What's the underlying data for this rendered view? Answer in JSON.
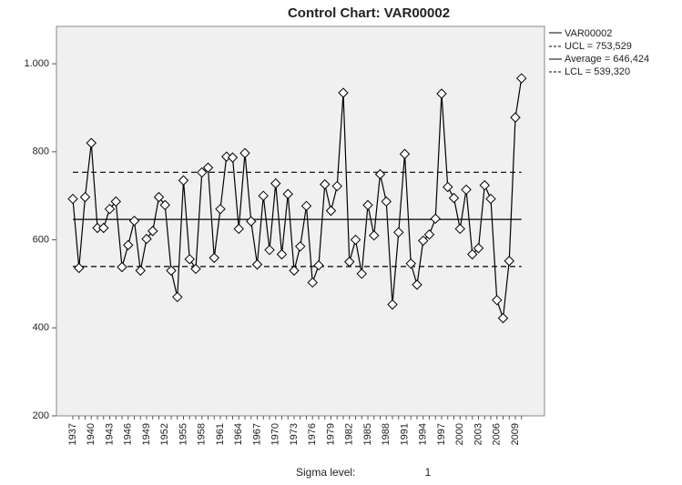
{
  "chart_data": {
    "type": "line",
    "title": "Control Chart: VAR00002",
    "categories": [
      "1937",
      null,
      null,
      "1940",
      null,
      null,
      "1943",
      null,
      null,
      "1946",
      null,
      null,
      "1949",
      null,
      null,
      "1952",
      null,
      null,
      "1955",
      null,
      null,
      "1958",
      null,
      null,
      "1961",
      null,
      null,
      "1964",
      null,
      null,
      "1967",
      null,
      null,
      "1970",
      null,
      null,
      "1973",
      null,
      null,
      "1976",
      null,
      null,
      "1979",
      null,
      null,
      "1982",
      null,
      null,
      "1985",
      null,
      null,
      "1988",
      null,
      null,
      "1991",
      null,
      null,
      "1994",
      null,
      null,
      "1997",
      null,
      null,
      "2000",
      null,
      null,
      "2003",
      null,
      null,
      "2006",
      null,
      null,
      "2009",
      null
    ],
    "series": [
      {
        "name": "VAR00002",
        "color": "#000000",
        "values": [
          693,
          536,
          697,
          820,
          627,
          627,
          670,
          687,
          538,
          588,
          643,
          530,
          602,
          620,
          697,
          679,
          530,
          470,
          735,
          556,
          534,
          753,
          764,
          559,
          670,
          789,
          787,
          625,
          797,
          642,
          544,
          700,
          577,
          728,
          567,
          704,
          530,
          585,
          677,
          503,
          542,
          726,
          666,
          722,
          934,
          550,
          600,
          523,
          679,
          610,
          749,
          687,
          453,
          617,
          795,
          546,
          498,
          598,
          612,
          648,
          932,
          720,
          695,
          625,
          714,
          567,
          581,
          724,
          693,
          463,
          422,
          552,
          878,
          967
        ]
      }
    ],
    "limits": [
      {
        "label": "UCL = 753,529",
        "value": 753.529,
        "dashed": true
      },
      {
        "label": "Average = 646,424",
        "value": 646.424,
        "dashed": false
      },
      {
        "label": "LCL = 539,320",
        "value": 539.32,
        "dashed": true
      }
    ],
    "ylim": [
      200,
      1085
    ],
    "yticks": [
      200,
      400,
      600,
      800,
      {
        "value": 1000,
        "label": "1.000"
      }
    ],
    "sigma_level": {
      "label": "Sigma level:",
      "value": 1
    }
  }
}
